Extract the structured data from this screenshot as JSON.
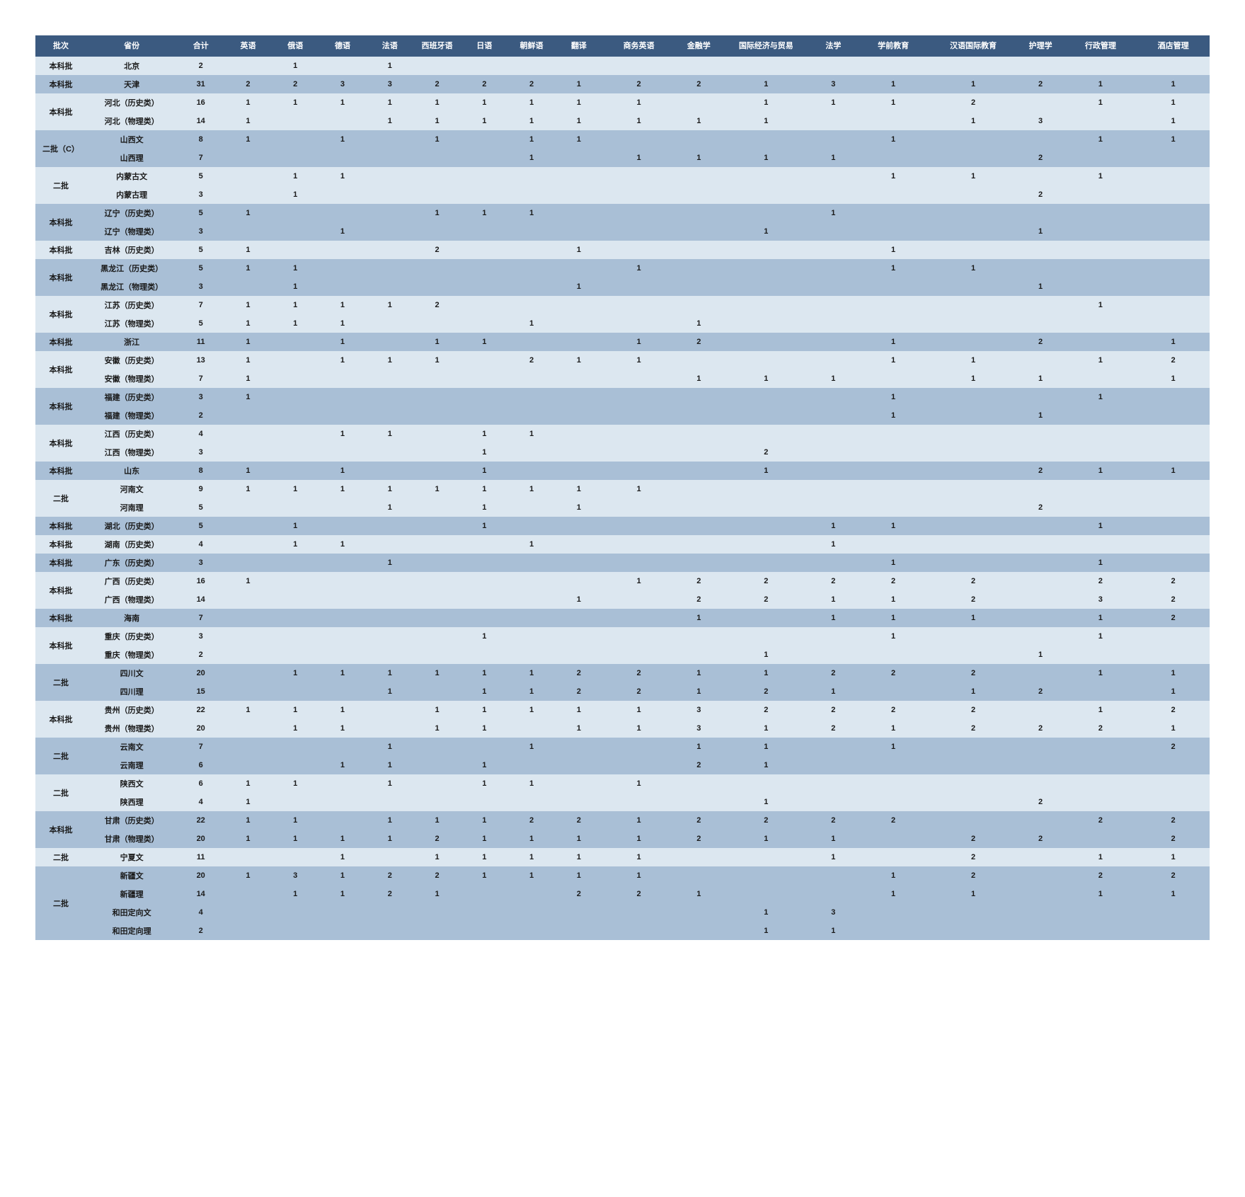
{
  "colors": {
    "header_bg": "#3b5a80",
    "header_fg": "#ffffff",
    "row_light": "#dce7f0",
    "row_dark": "#a9bfd6",
    "text": "#1a1a1a"
  },
  "columns": [
    {
      "key": "batch",
      "label": "批次",
      "w": "c-batch"
    },
    {
      "key": "prov",
      "label": "省份",
      "w": "c-prov"
    },
    {
      "key": "total",
      "label": "合计",
      "w": "c-num"
    },
    {
      "key": "en",
      "label": "英语",
      "w": "c-num"
    },
    {
      "key": "ru",
      "label": "俄语",
      "w": "c-num"
    },
    {
      "key": "de",
      "label": "德语",
      "w": "c-num"
    },
    {
      "key": "fr",
      "label": "法语",
      "w": "c-num"
    },
    {
      "key": "es",
      "label": "西班牙语",
      "w": "c-num"
    },
    {
      "key": "jp",
      "label": "日语",
      "w": "c-num"
    },
    {
      "key": "kr",
      "label": "朝鲜语",
      "w": "c-num"
    },
    {
      "key": "tr",
      "label": "翻译",
      "w": "c-num"
    },
    {
      "key": "be",
      "label": "商务英语",
      "w": "c-mid"
    },
    {
      "key": "fi",
      "label": "金融学",
      "w": "c-num"
    },
    {
      "key": "et",
      "label": "国际经济与贸易",
      "w": "c-wide"
    },
    {
      "key": "la",
      "label": "法学",
      "w": "c-num"
    },
    {
      "key": "pe",
      "label": "学前教育",
      "w": "c-mid"
    },
    {
      "key": "ce",
      "label": "汉语国际教育",
      "w": "c-wide"
    },
    {
      "key": "nu",
      "label": "护理学",
      "w": "c-num"
    },
    {
      "key": "ad",
      "label": "行政管理",
      "w": "c-mid"
    },
    {
      "key": "ho",
      "label": "酒店管理",
      "w": "c-mid"
    }
  ],
  "batches": [
    {
      "label": "本科批",
      "span": 1,
      "rows": [
        {
          "prov": "北京",
          "shade": "light",
          "cells": {
            "total": "2",
            "ru": "1",
            "fr": "1"
          }
        }
      ]
    },
    {
      "label": "本科批",
      "span": 1,
      "rows": [
        {
          "prov": "天津",
          "shade": "dark",
          "cells": {
            "total": "31",
            "en": "2",
            "ru": "2",
            "de": "3",
            "fr": "3",
            "es": "2",
            "jp": "2",
            "kr": "2",
            "tr": "1",
            "be": "2",
            "fi": "2",
            "et": "1",
            "la": "3",
            "pe": "1",
            "ce": "1",
            "nu": "2",
            "ad": "1",
            "ho": "1"
          }
        }
      ]
    },
    {
      "label": "本科批",
      "span": 2,
      "rows": [
        {
          "prov": "河北（历史类）",
          "shade": "light",
          "cells": {
            "total": "16",
            "en": "1",
            "ru": "1",
            "de": "1",
            "fr": "1",
            "es": "1",
            "jp": "1",
            "kr": "1",
            "tr": "1",
            "be": "1",
            "et": "1",
            "la": "1",
            "pe": "1",
            "ce": "2",
            "ad": "1",
            "ho": "1"
          }
        },
        {
          "prov": "河北（物理类）",
          "shade": "light",
          "cells": {
            "total": "14",
            "en": "1",
            "fr": "1",
            "es": "1",
            "jp": "1",
            "kr": "1",
            "tr": "1",
            "be": "1",
            "fi": "1",
            "et": "1",
            "ce": "1",
            "nu": "3",
            "ho": "1"
          }
        }
      ]
    },
    {
      "label": "二批（C）",
      "span": 2,
      "rows": [
        {
          "prov": "山西文",
          "shade": "dark",
          "cells": {
            "total": "8",
            "en": "1",
            "de": "1",
            "es": "1",
            "kr": "1",
            "tr": "1",
            "pe": "1",
            "ad": "1",
            "ho": "1"
          }
        },
        {
          "prov": "山西理",
          "shade": "dark",
          "cells": {
            "total": "7",
            "kr": "1",
            "be": "1",
            "fi": "1",
            "et": "1",
            "la": "1",
            "nu": "2"
          }
        }
      ]
    },
    {
      "label": "二批",
      "span": 2,
      "rows": [
        {
          "prov": "内蒙古文",
          "shade": "light",
          "cells": {
            "total": "5",
            "ru": "1",
            "de": "1",
            "pe": "1",
            "ce": "1",
            "ad": "1"
          }
        },
        {
          "prov": "内蒙古理",
          "shade": "light",
          "cells": {
            "total": "3",
            "ru": "1",
            "nu": "2"
          }
        }
      ]
    },
    {
      "label": "本科批",
      "span": 2,
      "rows": [
        {
          "prov": "辽宁（历史类）",
          "shade": "dark",
          "cells": {
            "total": "5",
            "en": "1",
            "es": "1",
            "jp": "1",
            "kr": "1",
            "la": "1"
          }
        },
        {
          "prov": "辽宁（物理类）",
          "shade": "dark",
          "cells": {
            "total": "3",
            "de": "1",
            "et": "1",
            "nu": "1"
          }
        }
      ]
    },
    {
      "label": "本科批",
      "span": 1,
      "rows": [
        {
          "prov": "吉林（历史类）",
          "shade": "light",
          "cells": {
            "total": "5",
            "en": "1",
            "es": "2",
            "tr": "1",
            "pe": "1"
          }
        }
      ]
    },
    {
      "label": "本科批",
      "span": 2,
      "rows": [
        {
          "prov": "黑龙江（历史类）",
          "shade": "dark",
          "cells": {
            "total": "5",
            "en": "1",
            "ru": "1",
            "be": "1",
            "pe": "1",
            "ce": "1"
          }
        },
        {
          "prov": "黑龙江（物理类）",
          "shade": "dark",
          "cells": {
            "total": "3",
            "ru": "1",
            "tr": "1",
            "nu": "1"
          }
        }
      ]
    },
    {
      "label": "本科批",
      "span": 2,
      "rows": [
        {
          "prov": "江苏（历史类）",
          "shade": "light",
          "cells": {
            "total": "7",
            "en": "1",
            "ru": "1",
            "de": "1",
            "fr": "1",
            "es": "2",
            "ad": "1"
          }
        },
        {
          "prov": "江苏（物理类）",
          "shade": "light",
          "cells": {
            "total": "5",
            "en": "1",
            "ru": "1",
            "de": "1",
            "kr": "1",
            "fi": "1"
          }
        }
      ]
    },
    {
      "label": "本科批",
      "span": 1,
      "rows": [
        {
          "prov": "浙江",
          "shade": "dark",
          "cells": {
            "total": "11",
            "en": "1",
            "de": "1",
            "es": "1",
            "jp": "1",
            "be": "1",
            "fi": "2",
            "pe": "1",
            "nu": "2",
            "ho": "1"
          }
        }
      ]
    },
    {
      "label": "本科批",
      "span": 2,
      "rows": [
        {
          "prov": "安徽（历史类）",
          "shade": "light",
          "cells": {
            "total": "13",
            "en": "1",
            "de": "1",
            "fr": "1",
            "es": "1",
            "kr": "2",
            "tr": "1",
            "be": "1",
            "pe": "1",
            "ce": "1",
            "ad": "1",
            "ho": "2"
          }
        },
        {
          "prov": "安徽（物理类）",
          "shade": "light",
          "cells": {
            "total": "7",
            "en": "1",
            "fi": "1",
            "et": "1",
            "la": "1",
            "ce": "1",
            "nu": "1",
            "ho": "1"
          }
        }
      ]
    },
    {
      "label": "本科批",
      "span": 2,
      "rows": [
        {
          "prov": "福建（历史类）",
          "shade": "dark",
          "cells": {
            "total": "3",
            "en": "1",
            "pe": "1",
            "ad": "1"
          }
        },
        {
          "prov": "福建（物理类）",
          "shade": "dark",
          "cells": {
            "total": "2",
            "pe": "1",
            "nu": "1"
          }
        }
      ]
    },
    {
      "label": "本科批",
      "span": 2,
      "rows": [
        {
          "prov": "江西（历史类）",
          "shade": "light",
          "cells": {
            "total": "4",
            "de": "1",
            "fr": "1",
            "jp": "1",
            "kr": "1"
          }
        },
        {
          "prov": "江西（物理类）",
          "shade": "light",
          "cells": {
            "total": "3",
            "jp": "1",
            "et": "2"
          }
        }
      ]
    },
    {
      "label": "本科批",
      "span": 1,
      "rows": [
        {
          "prov": "山东",
          "shade": "dark",
          "cells": {
            "total": "8",
            "en": "1",
            "de": "1",
            "jp": "1",
            "et": "1",
            "nu": "2",
            "ad": "1",
            "ho": "1"
          }
        }
      ]
    },
    {
      "label": "二批",
      "span": 2,
      "rows": [
        {
          "prov": "河南文",
          "shade": "light",
          "cells": {
            "total": "9",
            "en": "1",
            "ru": "1",
            "de": "1",
            "fr": "1",
            "es": "1",
            "jp": "1",
            "kr": "1",
            "tr": "1",
            "be": "1"
          }
        },
        {
          "prov": "河南理",
          "shade": "light",
          "cells": {
            "total": "5",
            "fr": "1",
            "jp": "1",
            "tr": "1",
            "nu": "2"
          }
        }
      ]
    },
    {
      "label": "本科批",
      "span": 1,
      "rows": [
        {
          "prov": "湖北（历史类）",
          "shade": "dark",
          "cells": {
            "total": "5",
            "ru": "1",
            "jp": "1",
            "la": "1",
            "pe": "1",
            "ad": "1"
          }
        }
      ]
    },
    {
      "label": "本科批",
      "span": 1,
      "rows": [
        {
          "prov": "湖南（历史类）",
          "shade": "light",
          "cells": {
            "total": "4",
            "ru": "1",
            "de": "1",
            "kr": "1",
            "la": "1"
          }
        }
      ]
    },
    {
      "label": "本科批",
      "span": 1,
      "rows": [
        {
          "prov": "广东（历史类）",
          "shade": "dark",
          "cells": {
            "total": "3",
            "fr": "1",
            "pe": "1",
            "ad": "1"
          }
        }
      ]
    },
    {
      "label": "本科批",
      "span": 2,
      "rows": [
        {
          "prov": "广西（历史类）",
          "shade": "light",
          "cells": {
            "total": "16",
            "en": "1",
            "be": "1",
            "fi": "2",
            "et": "2",
            "la": "2",
            "pe": "2",
            "ce": "2",
            "ad": "2",
            "ho": "2"
          }
        },
        {
          "prov": "广西（物理类）",
          "shade": "light",
          "cells": {
            "total": "14",
            "tr": "1",
            "fi": "2",
            "et": "2",
            "la": "1",
            "pe": "1",
            "ce": "2",
            "ad": "3",
            "ho": "2"
          }
        }
      ]
    },
    {
      "label": "本科批",
      "span": 1,
      "rows": [
        {
          "prov": "海南",
          "shade": "dark",
          "cells": {
            "total": "7",
            "fi": "1",
            "la": "1",
            "pe": "1",
            "ce": "1",
            "ad": "1",
            "ho": "2"
          }
        }
      ]
    },
    {
      "label": "本科批",
      "span": 2,
      "rows": [
        {
          "prov": "重庆（历史类）",
          "shade": "light",
          "cells": {
            "total": "3",
            "jp": "1",
            "pe": "1",
            "ad": "1"
          }
        },
        {
          "prov": "重庆（物理类）",
          "shade": "light",
          "cells": {
            "total": "2",
            "et": "1",
            "nu": "1"
          }
        }
      ]
    },
    {
      "label": "二批",
      "span": 2,
      "rows": [
        {
          "prov": "四川文",
          "shade": "dark",
          "cells": {
            "total": "20",
            "ru": "1",
            "de": "1",
            "fr": "1",
            "es": "1",
            "jp": "1",
            "kr": "1",
            "tr": "2",
            "be": "2",
            "fi": "1",
            "et": "1",
            "la": "2",
            "pe": "2",
            "ce": "2",
            "ad": "1",
            "ho": "1"
          }
        },
        {
          "prov": "四川理",
          "shade": "dark",
          "cells": {
            "total": "15",
            "fr": "1",
            "jp": "1",
            "kr": "1",
            "tr": "2",
            "be": "2",
            "fi": "1",
            "et": "2",
            "la": "1",
            "ce": "1",
            "nu": "2",
            "ho": "1"
          }
        }
      ]
    },
    {
      "label": "本科批",
      "span": 2,
      "rows": [
        {
          "prov": "贵州（历史类）",
          "shade": "light",
          "cells": {
            "total": "22",
            "en": "1",
            "ru": "1",
            "de": "1",
            "es": "1",
            "jp": "1",
            "kr": "1",
            "tr": "1",
            "be": "1",
            "fi": "3",
            "et": "2",
            "la": "2",
            "pe": "2",
            "ce": "2",
            "ad": "1",
            "ho": "2"
          }
        },
        {
          "prov": "贵州（物理类）",
          "shade": "light",
          "cells": {
            "total": "20",
            "ru": "1",
            "de": "1",
            "es": "1",
            "jp": "1",
            "tr": "1",
            "be": "1",
            "fi": "3",
            "et": "1",
            "la": "2",
            "pe": "1",
            "ce": "2",
            "nu": "2",
            "ad": "2",
            "ho": "1"
          }
        }
      ]
    },
    {
      "label": "二批",
      "span": 2,
      "rows": [
        {
          "prov": "云南文",
          "shade": "dark",
          "cells": {
            "total": "7",
            "fr": "1",
            "kr": "1",
            "fi": "1",
            "et": "1",
            "pe": "1",
            "ho": "2"
          }
        },
        {
          "prov": "云南理",
          "shade": "dark",
          "cells": {
            "total": "6",
            "de": "1",
            "fr": "1",
            "jp": "1",
            "fi": "2",
            "et": "1"
          }
        }
      ]
    },
    {
      "label": "二批",
      "span": 2,
      "rows": [
        {
          "prov": "陕西文",
          "shade": "light",
          "cells": {
            "total": "6",
            "en": "1",
            "ru": "1",
            "fr": "1",
            "jp": "1",
            "kr": "1",
            "be": "1"
          }
        },
        {
          "prov": "陕西理",
          "shade": "light",
          "cells": {
            "total": "4",
            "en": "1",
            "et": "1",
            "nu": "2"
          }
        }
      ]
    },
    {
      "label": "本科批",
      "span": 2,
      "rows": [
        {
          "prov": "甘肃（历史类）",
          "shade": "dark",
          "cells": {
            "total": "22",
            "en": "1",
            "ru": "1",
            "fr": "1",
            "es": "1",
            "jp": "1",
            "kr": "2",
            "tr": "2",
            "be": "1",
            "fi": "2",
            "et": "2",
            "la": "2",
            "pe": "2",
            "ad": "2",
            "ho": "2"
          }
        },
        {
          "prov": "甘肃（物理类）",
          "shade": "dark",
          "cells": {
            "total": "20",
            "en": "1",
            "ru": "1",
            "de": "1",
            "fr": "1",
            "es": "2",
            "jp": "1",
            "kr": "1",
            "tr": "1",
            "be": "1",
            "fi": "2",
            "et": "1",
            "la": "1",
            "ce": "2",
            "nu": "2",
            "ho": "2"
          }
        }
      ]
    },
    {
      "label": "二批",
      "span": 1,
      "rows": [
        {
          "prov": "宁夏文",
          "shade": "light",
          "cells": {
            "total": "11",
            "de": "1",
            "es": "1",
            "jp": "1",
            "kr": "1",
            "tr": "1",
            "be": "1",
            "la": "1",
            "ce": "2",
            "ad": "1",
            "ho": "1"
          }
        }
      ]
    },
    {
      "label": "二批",
      "span": 4,
      "rows": [
        {
          "prov": "新疆文",
          "shade": "dark",
          "cells": {
            "total": "20",
            "en": "1",
            "ru": "3",
            "de": "1",
            "fr": "2",
            "es": "2",
            "jp": "1",
            "kr": "1",
            "tr": "1",
            "be": "1",
            "pe": "1",
            "ce": "2",
            "ad": "2",
            "ho": "2"
          }
        },
        {
          "prov": "新疆理",
          "shade": "dark",
          "cells": {
            "total": "14",
            "ru": "1",
            "de": "1",
            "fr": "2",
            "es": "1",
            "tr": "2",
            "be": "2",
            "fi": "1",
            "pe": "1",
            "ce": "1",
            "ad": "1",
            "ho": "1"
          }
        },
        {
          "prov": "和田定向文",
          "shade": "dark",
          "cells": {
            "total": "4",
            "et": "1",
            "la": "3"
          }
        },
        {
          "prov": "和田定向理",
          "shade": "dark",
          "cells": {
            "total": "2",
            "et": "1",
            "la": "1"
          }
        }
      ]
    }
  ]
}
